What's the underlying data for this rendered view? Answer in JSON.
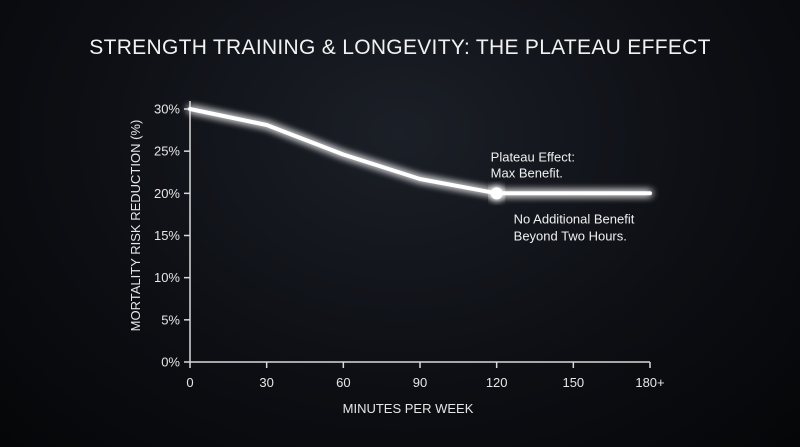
{
  "chart_data": {
    "type": "line",
    "title": "STRENGTH TRAINING & LONGEVITY: THE PLATEAU EFFECT",
    "xlabel": "MINUTES PER WEEK",
    "ylabel": "MORTALITY RISK REDUCTION (%)",
    "x_ticks": [
      "0",
      "30",
      "60",
      "90",
      "120",
      "150",
      "180+"
    ],
    "y_ticks": [
      "0%",
      "5%",
      "10%",
      "15%",
      "20%",
      "25%",
      "30%"
    ],
    "xlim": [
      0,
      180
    ],
    "ylim": [
      0,
      30
    ],
    "series": [
      {
        "x": [
          0,
          30,
          60,
          90,
          120,
          150,
          180
        ],
        "y": [
          30,
          28.1,
          24.6,
          21.7,
          20,
          20,
          20
        ]
      }
    ],
    "highlight_point": {
      "x": 120,
      "y": 20
    },
    "annotations": {
      "plateau_line1": "Plateau Effect:",
      "plateau_line2": "Max Benefit.",
      "nobenefit_line1": "No Additional Benefit",
      "nobenefit_line2": "Beyond Two Hours."
    },
    "line_color": "#ffffff",
    "axis_color": "#d9d9d9",
    "grid": false
  }
}
